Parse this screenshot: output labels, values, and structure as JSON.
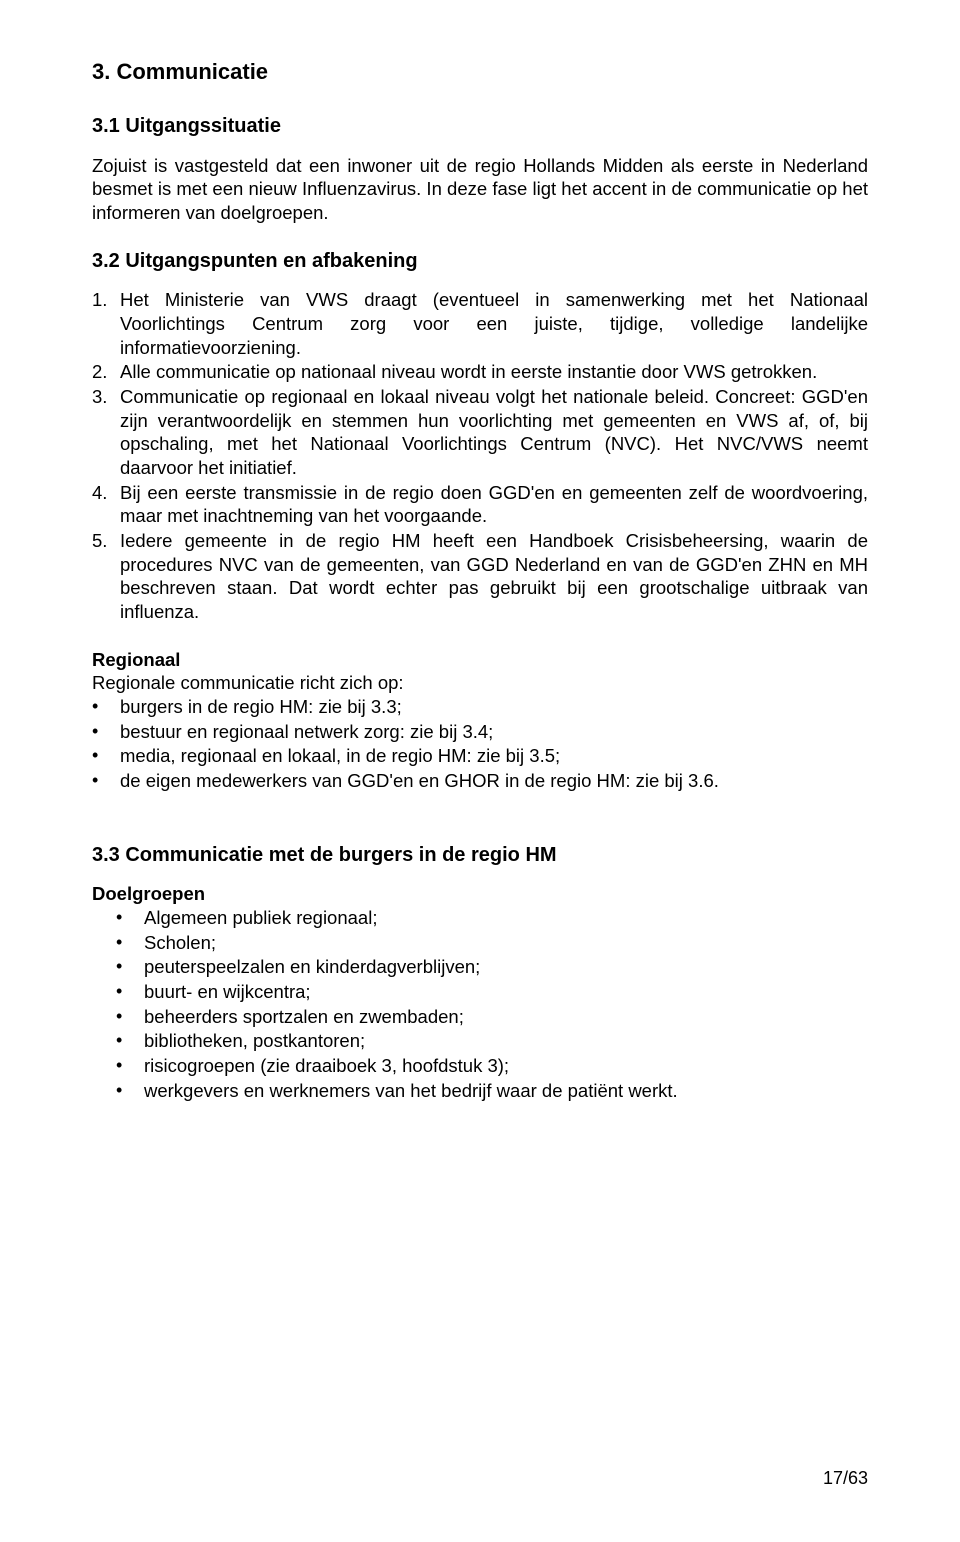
{
  "colors": {
    "text": "#000000",
    "background": "#ffffff"
  },
  "typography": {
    "font_family": "Arial",
    "body_fontsize": 18.5,
    "h1_fontsize": 22,
    "h2_fontsize": 20
  },
  "s3": {
    "heading": "3.  Communicatie",
    "s31": {
      "heading": "3.1  Uitgangssituatie",
      "para": "Zojuist is vastgesteld dat een inwoner uit de regio Hollands Midden als eerste in Nederland besmet is met een nieuw Influenzavirus. In deze fase ligt het accent in de communicatie op het informeren van doelgroepen."
    },
    "s32": {
      "heading": "3.2  Uitgangspunten en afbakening",
      "items": [
        {
          "n": "1.",
          "t": "Het Ministerie van VWS draagt (eventueel in samenwerking met het Nationaal Voorlichtings Centrum zorg voor een juiste, tijdige, volledige landelijke informatievoorziening."
        },
        {
          "n": "2.",
          "t": "Alle communicatie op nationaal niveau wordt in eerste instantie door VWS getrokken."
        },
        {
          "n": "3.",
          "t": "Communicatie op regionaal en lokaal niveau volgt het nationale beleid. Concreet: GGD'en zijn verantwoordelijk en stemmen hun voorlichting met gemeenten en VWS af, of, bij opschaling, met het Nationaal Voorlichtings Centrum (NVC). Het NVC/VWS neemt daarvoor het initiatief."
        },
        {
          "n": "4.",
          "t": "Bij een eerste transmissie in de regio doen GGD'en en gemeenten zelf de woordvoering, maar met inachtneming van het voorgaande."
        },
        {
          "n": "5.",
          "t": "Iedere gemeente in de regio HM heeft een Handboek Crisisbeheersing, waarin de procedures NVC van de gemeenten, van GGD Nederland en van de GGD'en ZHN en MH beschreven staan. Dat wordt echter pas gebruikt bij een grootschalige uitbraak van influenza."
        }
      ],
      "regionaal_heading": "Regionaal",
      "regionaal_intro": "Regionale communicatie richt zich op:",
      "regionaal_items": [
        "burgers in de regio HM: zie bij 3.3;",
        "bestuur en regionaal netwerk zorg: zie bij 3.4;",
        "media, regionaal en lokaal, in de regio HM: zie bij 3.5;",
        "de eigen medewerkers van GGD'en en GHOR in de regio HM: zie bij 3.6."
      ]
    },
    "s33": {
      "heading": "3.3  Communicatie met de burgers in de regio HM",
      "doelgroepen_heading": "Doelgroepen",
      "doelgroepen_items": [
        "Algemeen publiek regionaal;",
        "Scholen;",
        "peuterspeelzalen en kinderdagverblijven;",
        "buurt- en wijkcentra;",
        "beheerders sportzalen en zwembaden;",
        "bibliotheken, postkantoren;",
        "risicogroepen (zie draaiboek 3, hoofdstuk 3);",
        "werkgevers en werknemers van het bedrijf waar de patiënt werkt."
      ]
    }
  },
  "page_number": "17/63"
}
